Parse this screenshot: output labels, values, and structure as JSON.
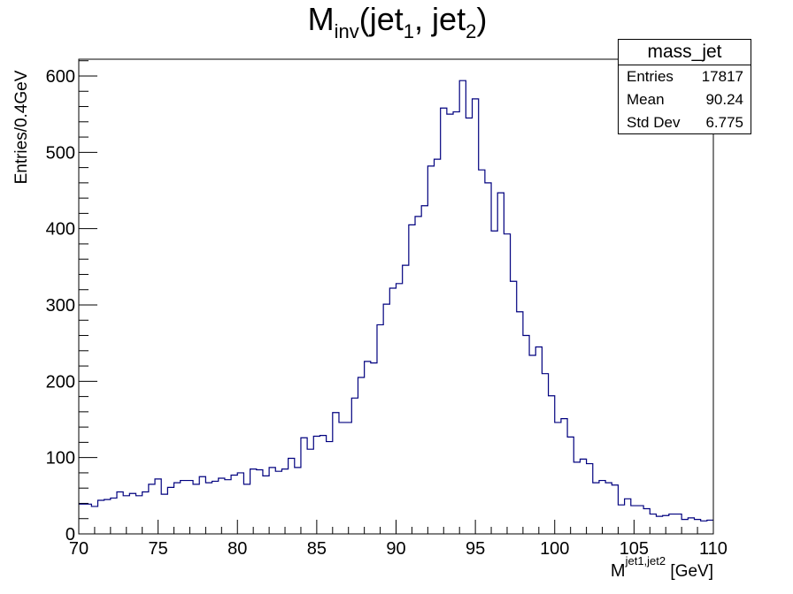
{
  "chart_data": {
    "type": "histogram",
    "title": "M_inv(jet_1, jet_2)",
    "title_parts": {
      "main": "M",
      "sub1": "inv",
      "mid": "(jet",
      "sub2": "1",
      "sep": ", jet",
      "sub3": "2",
      "end": ")"
    },
    "xlabel_parts": {
      "main": "M",
      "sup": "jet1,jet2",
      "end": " [GeV]"
    },
    "ylabel": "Entries/0.4GeV",
    "xlim": [
      70,
      110
    ],
    "ylim": [
      0,
      622
    ],
    "bin_width": 0.4,
    "x_ticks": [
      70,
      75,
      80,
      85,
      90,
      95,
      100,
      105,
      110
    ],
    "y_ticks": [
      0,
      100,
      200,
      300,
      400,
      500,
      600
    ],
    "line_color": "#00007f",
    "values": [
      39,
      39,
      36,
      44,
      45,
      47,
      55,
      50,
      53,
      50,
      55,
      65,
      72,
      52,
      61,
      67,
      70,
      70,
      65,
      75,
      67,
      69,
      73,
      71,
      77,
      80,
      65,
      85,
      84,
      76,
      87,
      82,
      85,
      99,
      87,
      126,
      111,
      128,
      129,
      121,
      159,
      146,
      146,
      178,
      205,
      226,
      224,
      274,
      301,
      322,
      328,
      352,
      405,
      416,
      430,
      482,
      491,
      558,
      550,
      553,
      594,
      545,
      570,
      477,
      460,
      397,
      447,
      393,
      331,
      291,
      260,
      234,
      245,
      210,
      181,
      146,
      151,
      127,
      94,
      98,
      92,
      67,
      70,
      67,
      64,
      38,
      46,
      37,
      37,
      33,
      26,
      23,
      24,
      26,
      26,
      19,
      21,
      19,
      17,
      18
    ],
    "stats_box": {
      "title": "mass_jet",
      "rows": [
        {
          "label": "Entries",
          "value": "17817"
        },
        {
          "label": "Mean",
          "value": "90.24"
        },
        {
          "label": "Std Dev",
          "value": "6.775"
        }
      ]
    }
  }
}
